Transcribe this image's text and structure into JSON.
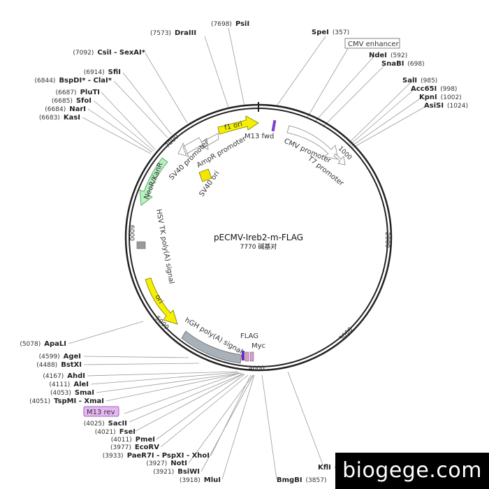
{
  "plasmid": {
    "name": "pECMV-Ireb2-m-FLAG",
    "length_label": "7770 碱基对",
    "length": 7770
  },
  "ticks": [
    "1000",
    "2000",
    "3000",
    "4000",
    "5000",
    "6000",
    "7000"
  ],
  "sites_top": [
    {
      "pos": "(7698)",
      "name": "PsiI"
    },
    {
      "pos": "(7573)",
      "name": "DraIII"
    },
    {
      "pos": "(357)",
      "name": "SpeI"
    }
  ],
  "sites_left": [
    {
      "pos": "(7092)",
      "name": "CsiI - SexAI*"
    },
    {
      "pos": "(6914)",
      "name": "SfiI"
    },
    {
      "pos": "(6844)",
      "name": "BspDI* - ClaI*"
    },
    {
      "pos": "(6687)",
      "name": "PluTI"
    },
    {
      "pos": "(6685)",
      "name": "SfoI"
    },
    {
      "pos": "(6684)",
      "name": "NarI"
    },
    {
      "pos": "(6683)",
      "name": "KasI"
    }
  ],
  "sites_right": [
    {
      "pos": "(592)",
      "name": "NdeI"
    },
    {
      "pos": "(698)",
      "name": "SnaBI"
    },
    {
      "pos": "(985)",
      "name": "SalI"
    },
    {
      "pos": "(998)",
      "name": "Acc65I"
    },
    {
      "pos": "(1002)",
      "name": "KpnI"
    },
    {
      "pos": "(1024)",
      "name": "AsiSI"
    }
  ],
  "sites_lower_left": [
    {
      "pos": "(5078)",
      "name": "ApaLI"
    },
    {
      "pos": "(4599)",
      "name": "AgeI"
    },
    {
      "pos": "(4488)",
      "name": "BstXI"
    },
    {
      "pos": "(4167)",
      "name": "AhdI"
    },
    {
      "pos": "(4111)",
      "name": "AleI"
    },
    {
      "pos": "(4053)",
      "name": "SmaI"
    },
    {
      "pos": "(4051)",
      "name": "TspMI - XmaI"
    },
    {
      "pos": "(4025)",
      "name": "SacII"
    },
    {
      "pos": "(4021)",
      "name": "FseI"
    },
    {
      "pos": "(4011)",
      "name": "PmeI"
    },
    {
      "pos": "(3977)",
      "name": "EcoRV"
    },
    {
      "pos": "(3933)",
      "name": "PaeR7I - PspXI - XhoI"
    },
    {
      "pos": "(3927)",
      "name": "NotI"
    },
    {
      "pos": "(3921)",
      "name": "BsiWI"
    },
    {
      "pos": "(3918)",
      "name": "MluI"
    },
    {
      "pos": "(3857)",
      "name": "BmgBI"
    }
  ],
  "site_bottom_right": {
    "pos": "(3",
    "name": "KflI"
  },
  "boxed_labels": {
    "cmv_enhancer": "CMV enhancer",
    "m13_rev": "M13 rev"
  },
  "features": {
    "f1_ori": "f1 ori",
    "m13_fwd": "M13 fwd",
    "ampr_promoter": "AmpR promoter",
    "sv40_promoter": "SV40 promoter",
    "cmv_promoter": "CMV promoter",
    "t7_promoter": "T7 promoter",
    "sv40_ori": "SV40 ori",
    "neor": "NeoR/KanR",
    "hsv_tk": "HSV TK poly(A) signal",
    "ori": "ori",
    "hgh": "hGH poly(A) signal",
    "flag": "FLAG",
    "myc": "Myc"
  },
  "watermark": "biogege.com"
}
